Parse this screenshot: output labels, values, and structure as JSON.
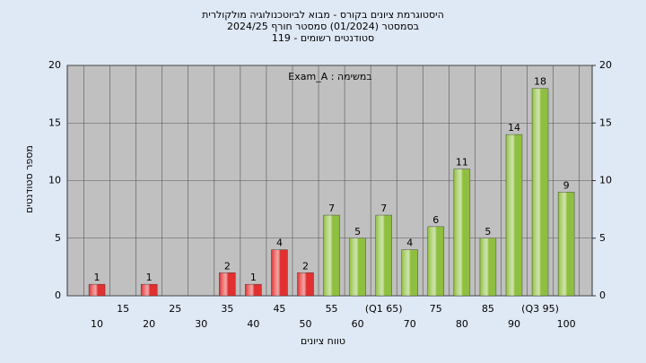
{
  "chart_data": {
    "type": "bar",
    "title": [
      "היסטוגרמת ציונים בקורס - מבוא לביוטכנולוגיה מולקולרית",
      "בסמסטר  (01/2024)  סמסטר חורף 2024/25",
      "סטודנטים רשומים - 119"
    ],
    "annotation": "במשימה : Exam_A",
    "xlabel": "טווח ציונים",
    "ylabel": "מספר סטודנטים",
    "categories": [
      "10",
      "15",
      "20",
      "25",
      "30",
      "35",
      "40",
      "45",
      "50",
      "55",
      "60",
      "(Q1 65)",
      "70",
      "75",
      "80",
      "85",
      "90",
      "(Q3 95)",
      "100"
    ],
    "values": [
      1,
      0,
      1,
      0,
      0,
      2,
      1,
      4,
      2,
      7,
      5,
      7,
      4,
      6,
      11,
      5,
      14,
      18,
      9
    ],
    "colors": [
      "#e03030",
      "#e03030",
      "#e03030",
      "#e03030",
      "#e03030",
      "#e03030",
      "#e03030",
      "#e03030",
      "#e03030",
      "#8fbf3f",
      "#8fbf3f",
      "#8fbf3f",
      "#8fbf3f",
      "#8fbf3f",
      "#8fbf3f",
      "#8fbf3f",
      "#8fbf3f",
      "#8fbf3f",
      "#8fbf3f"
    ],
    "ylim": [
      0,
      20
    ],
    "yticks": [
      0,
      5,
      10,
      15,
      20
    ],
    "y2lim": [
      0,
      20
    ],
    "y2ticks": [
      0,
      5,
      10,
      15,
      20
    ],
    "grid": true
  }
}
